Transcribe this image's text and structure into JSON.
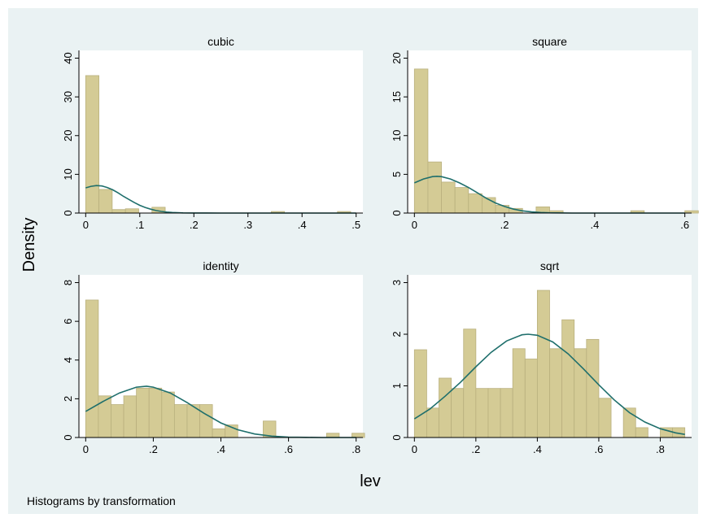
{
  "figure": {
    "ylabel": "Density",
    "xlabel": "lev",
    "note": "Histograms by transformation"
  },
  "colors": {
    "plot_bg": "#ffffff",
    "outer_bg": "#eaf2f3",
    "bar_fill": "#d4cb95",
    "bar_edge": "#b9b07e",
    "curve": "#1f6f6c"
  },
  "chart_data": [
    {
      "type": "bar",
      "title": "cubic",
      "xlim": [
        -0.0125,
        0.5125
      ],
      "ylim": [
        0,
        42
      ],
      "xticks": [
        0,
        0.1,
        0.2,
        0.3,
        0.4,
        0.5
      ],
      "xtick_labels": [
        "0",
        ".1",
        ".2",
        ".3",
        ".4",
        ".5"
      ],
      "yticks": [
        0,
        10,
        20,
        30,
        40
      ],
      "ytick_labels": [
        "0",
        "10",
        "20",
        "30",
        "40"
      ],
      "bin_width": 0.0245,
      "bins": [
        {
          "x0": 0.0,
          "value": 35.5
        },
        {
          "x0": 0.0245,
          "value": 6.1
        },
        {
          "x0": 0.049,
          "value": 0.9
        },
        {
          "x0": 0.0735,
          "value": 1.1
        },
        {
          "x0": 0.098,
          "value": 0
        },
        {
          "x0": 0.1225,
          "value": 1.5
        },
        {
          "x0": 0.147,
          "value": 0
        },
        {
          "x0": 0.1715,
          "value": 0
        },
        {
          "x0": 0.196,
          "value": 0
        },
        {
          "x0": 0.2205,
          "value": 0
        },
        {
          "x0": 0.245,
          "value": 0
        },
        {
          "x0": 0.2695,
          "value": 0
        },
        {
          "x0": 0.294,
          "value": 0
        },
        {
          "x0": 0.3185,
          "value": 0
        },
        {
          "x0": 0.343,
          "value": 0.4
        },
        {
          "x0": 0.3675,
          "value": 0
        },
        {
          "x0": 0.392,
          "value": 0
        },
        {
          "x0": 0.4165,
          "value": 0
        },
        {
          "x0": 0.441,
          "value": 0
        },
        {
          "x0": 0.4655,
          "value": 0.4
        }
      ],
      "curve": {
        "x": [
          0,
          0.01,
          0.02,
          0.03,
          0.04,
          0.05,
          0.06,
          0.07,
          0.08,
          0.09,
          0.1,
          0.11,
          0.12,
          0.13,
          0.14,
          0.15,
          0.16,
          0.18,
          0.2,
          0.25,
          0.3,
          0.35,
          0.4,
          0.45,
          0.5
        ],
        "y": [
          6.5,
          6.9,
          7.1,
          7.0,
          6.6,
          6.0,
          5.2,
          4.3,
          3.5,
          2.7,
          2.0,
          1.45,
          1.0,
          0.65,
          0.42,
          0.26,
          0.15,
          0.05,
          0.02,
          0,
          0,
          0,
          0,
          0,
          0
        ]
      }
    },
    {
      "type": "bar",
      "title": "square",
      "xlim": [
        -0.015,
        0.615
      ],
      "ylim": [
        0,
        21
      ],
      "xticks": [
        0,
        0.2,
        0.4,
        0.6
      ],
      "xtick_labels": [
        "0",
        ".2",
        ".4",
        ".6"
      ],
      "yticks": [
        0,
        5,
        10,
        15,
        20
      ],
      "ytick_labels": [
        "0",
        "5",
        "10",
        "15",
        "20"
      ],
      "bin_width": 0.03,
      "bins": [
        {
          "x0": 0.0,
          "value": 18.6
        },
        {
          "x0": 0.03,
          "value": 6.6
        },
        {
          "x0": 0.06,
          "value": 4.0
        },
        {
          "x0": 0.09,
          "value": 3.3
        },
        {
          "x0": 0.12,
          "value": 2.5
        },
        {
          "x0": 0.15,
          "value": 2.0
        },
        {
          "x0": 0.18,
          "value": 1.0
        },
        {
          "x0": 0.21,
          "value": 0.6
        },
        {
          "x0": 0.24,
          "value": 0
        },
        {
          "x0": 0.27,
          "value": 0.8
        },
        {
          "x0": 0.3,
          "value": 0.3
        },
        {
          "x0": 0.33,
          "value": 0
        },
        {
          "x0": 0.36,
          "value": 0
        },
        {
          "x0": 0.39,
          "value": 0
        },
        {
          "x0": 0.42,
          "value": 0
        },
        {
          "x0": 0.45,
          "value": 0
        },
        {
          "x0": 0.48,
          "value": 0.3
        },
        {
          "x0": 0.51,
          "value": 0
        },
        {
          "x0": 0.54,
          "value": 0
        },
        {
          "x0": 0.57,
          "value": 0
        },
        {
          "x0": 0.6,
          "value": 0.3
        }
      ],
      "curve": {
        "x": [
          0,
          0.02,
          0.04,
          0.05,
          0.06,
          0.08,
          0.1,
          0.12,
          0.14,
          0.16,
          0.18,
          0.2,
          0.22,
          0.24,
          0.26,
          0.28,
          0.3,
          0.35,
          0.4,
          0.5,
          0.6
        ],
        "y": [
          3.9,
          4.4,
          4.7,
          4.75,
          4.7,
          4.4,
          3.9,
          3.3,
          2.6,
          1.9,
          1.3,
          0.85,
          0.5,
          0.28,
          0.15,
          0.07,
          0.03,
          0,
          0,
          0,
          0
        ]
      }
    },
    {
      "type": "bar",
      "title": "identity",
      "xlim": [
        -0.02,
        0.82
      ],
      "ylim": [
        0,
        8.4
      ],
      "xticks": [
        0,
        0.2,
        0.4,
        0.6,
        0.8
      ],
      "xtick_labels": [
        "0",
        ".2",
        ".4",
        ".6",
        ".8"
      ],
      "yticks": [
        0,
        2,
        4,
        6,
        8
      ],
      "ytick_labels": [
        "0",
        "2",
        "4",
        "6",
        "8"
      ],
      "bin_width": 0.0375,
      "bins": [
        {
          "x0": 0.0,
          "value": 7.1
        },
        {
          "x0": 0.0375,
          "value": 2.15
        },
        {
          "x0": 0.075,
          "value": 1.7
        },
        {
          "x0": 0.1125,
          "value": 2.15
        },
        {
          "x0": 0.15,
          "value": 2.55
        },
        {
          "x0": 0.1875,
          "value": 2.55
        },
        {
          "x0": 0.225,
          "value": 2.35
        },
        {
          "x0": 0.2625,
          "value": 1.7
        },
        {
          "x0": 0.3,
          "value": 1.7
        },
        {
          "x0": 0.3375,
          "value": 1.7
        },
        {
          "x0": 0.375,
          "value": 0.45
        },
        {
          "x0": 0.4125,
          "value": 0.65
        },
        {
          "x0": 0.45,
          "value": 0
        },
        {
          "x0": 0.4875,
          "value": 0
        },
        {
          "x0": 0.525,
          "value": 0.85
        },
        {
          "x0": 0.5625,
          "value": 0
        },
        {
          "x0": 0.6,
          "value": 0
        },
        {
          "x0": 0.6375,
          "value": 0
        },
        {
          "x0": 0.675,
          "value": 0
        },
        {
          "x0": 0.7125,
          "value": 0.22
        },
        {
          "x0": 0.75,
          "value": 0
        },
        {
          "x0": 0.7875,
          "value": 0.22
        }
      ],
      "curve": {
        "x": [
          0,
          0.05,
          0.1,
          0.15,
          0.18,
          0.2,
          0.25,
          0.3,
          0.35,
          0.4,
          0.45,
          0.5,
          0.55,
          0.6,
          0.65,
          0.7,
          0.8
        ],
        "y": [
          1.35,
          1.85,
          2.3,
          2.6,
          2.65,
          2.6,
          2.3,
          1.8,
          1.25,
          0.75,
          0.4,
          0.18,
          0.07,
          0.02,
          0.01,
          0,
          0
        ]
      }
    },
    {
      "type": "bar",
      "title": "sqrt",
      "xlim": [
        -0.022,
        0.902
      ],
      "ylim": [
        0,
        3.15
      ],
      "xticks": [
        0,
        0.2,
        0.4,
        0.6,
        0.8
      ],
      "xtick_labels": [
        "0",
        ".2",
        ".4",
        ".6",
        ".8"
      ],
      "yticks": [
        0,
        1,
        2,
        3
      ],
      "ytick_labels": [
        "0",
        "1",
        "2",
        "3"
      ],
      "bin_width": 0.04,
      "bins": [
        {
          "x0": 0.0,
          "value": 1.7
        },
        {
          "x0": 0.04,
          "value": 0.57
        },
        {
          "x0": 0.08,
          "value": 1.15
        },
        {
          "x0": 0.12,
          "value": 0.95
        },
        {
          "x0": 0.16,
          "value": 2.1
        },
        {
          "x0": 0.2,
          "value": 0.95
        },
        {
          "x0": 0.24,
          "value": 0.95
        },
        {
          "x0": 0.28,
          "value": 0.95
        },
        {
          "x0": 0.32,
          "value": 1.72
        },
        {
          "x0": 0.36,
          "value": 1.52
        },
        {
          "x0": 0.4,
          "value": 2.85
        },
        {
          "x0": 0.44,
          "value": 1.72
        },
        {
          "x0": 0.48,
          "value": 2.28
        },
        {
          "x0": 0.52,
          "value": 1.72
        },
        {
          "x0": 0.56,
          "value": 1.9
        },
        {
          "x0": 0.6,
          "value": 0.76
        },
        {
          "x0": 0.64,
          "value": 0
        },
        {
          "x0": 0.68,
          "value": 0.57
        },
        {
          "x0": 0.72,
          "value": 0.19
        },
        {
          "x0": 0.76,
          "value": 0
        },
        {
          "x0": 0.8,
          "value": 0.19
        },
        {
          "x0": 0.84,
          "value": 0.19
        }
      ],
      "curve": {
        "x": [
          0,
          0.05,
          0.1,
          0.15,
          0.2,
          0.25,
          0.3,
          0.35,
          0.37,
          0.4,
          0.45,
          0.5,
          0.55,
          0.6,
          0.65,
          0.7,
          0.75,
          0.8,
          0.85,
          0.88
        ],
        "y": [
          0.36,
          0.55,
          0.8,
          1.07,
          1.37,
          1.65,
          1.87,
          1.99,
          2.0,
          1.98,
          1.85,
          1.62,
          1.33,
          1.02,
          0.73,
          0.48,
          0.3,
          0.17,
          0.09,
          0.06
        ]
      }
    }
  ]
}
